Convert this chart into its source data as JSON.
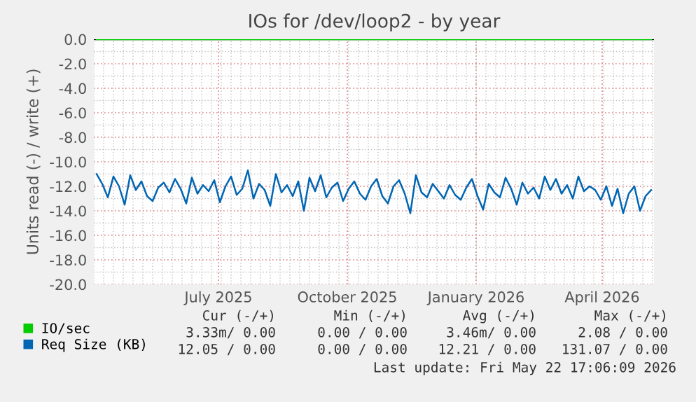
{
  "chart_data": {
    "type": "line",
    "title": "IOs for /dev/loop2 - by year",
    "ylabel": "Units read (-) / write (+)",
    "xlim": [
      "2025-04-03",
      "2026-05-08"
    ],
    "xticks": [
      {
        "value": "2025-07-01",
        "label": "July 2025"
      },
      {
        "value": "2025-10-01",
        "label": "October 2025"
      },
      {
        "value": "2026-01-01",
        "label": "January 2026"
      },
      {
        "value": "2026-04-01",
        "label": "April 2026"
      }
    ],
    "ylim": [
      -20,
      0
    ],
    "yticks": [
      {
        "value": -20,
        "label": "-20.0"
      },
      {
        "value": -18,
        "label": "-18.0"
      },
      {
        "value": -16,
        "label": "-16.0"
      },
      {
        "value": -14,
        "label": "-14.0"
      },
      {
        "value": -12,
        "label": "-12.0"
      },
      {
        "value": -10,
        "label": "-10.0"
      },
      {
        "value": -8,
        "label": "-8.0"
      },
      {
        "value": -6,
        "label": "-6.0"
      },
      {
        "value": -4,
        "label": "-4.0"
      },
      {
        "value": -2,
        "label": "-2.0"
      },
      {
        "value": 0,
        "label": "0.0"
      }
    ],
    "grid": true,
    "legend": "bottom left",
    "series": [
      {
        "name": "IO/sec",
        "color": "#00cc00",
        "x": [
          "2025-04-05",
          "2026-05-06"
        ],
        "values": [
          0,
          0
        ]
      },
      {
        "name": "Req Size (KB)",
        "color": "#0066b3",
        "x": [
          "2025-04-05",
          "2025-04-09",
          "2025-04-13",
          "2025-04-17",
          "2025-04-21",
          "2025-04-25",
          "2025-04-29",
          "2025-05-03",
          "2025-05-07",
          "2025-05-11",
          "2025-05-15",
          "2025-05-19",
          "2025-05-23",
          "2025-05-27",
          "2025-05-31",
          "2025-06-04",
          "2025-06-08",
          "2025-06-12",
          "2025-06-16",
          "2025-06-20",
          "2025-06-24",
          "2025-06-28",
          "2025-07-02",
          "2025-07-06",
          "2025-07-10",
          "2025-07-14",
          "2025-07-18",
          "2025-07-22",
          "2025-07-26",
          "2025-07-30",
          "2025-08-03",
          "2025-08-07",
          "2025-08-11",
          "2025-08-15",
          "2025-08-19",
          "2025-08-23",
          "2025-08-27",
          "2025-08-31",
          "2025-09-04",
          "2025-09-08",
          "2025-09-12",
          "2025-09-16",
          "2025-09-20",
          "2025-09-24",
          "2025-09-28",
          "2025-10-02",
          "2025-10-06",
          "2025-10-10",
          "2025-10-14",
          "2025-10-18",
          "2025-10-22",
          "2025-10-26",
          "2025-10-30",
          "2025-11-03",
          "2025-11-07",
          "2025-11-11",
          "2025-11-15",
          "2025-11-19",
          "2025-11-23",
          "2025-11-27",
          "2025-12-01",
          "2025-12-05",
          "2025-12-09",
          "2025-12-13",
          "2025-12-17",
          "2025-12-21",
          "2025-12-25",
          "2025-12-29",
          "2026-01-02",
          "2026-01-06",
          "2026-01-10",
          "2026-01-14",
          "2026-01-18",
          "2026-01-22",
          "2026-01-26",
          "2026-01-30",
          "2026-02-03",
          "2026-02-07",
          "2026-02-11",
          "2026-02-15",
          "2026-02-19",
          "2026-02-23",
          "2026-02-27",
          "2026-03-03",
          "2026-03-07",
          "2026-03-11",
          "2026-03-15",
          "2026-03-19",
          "2026-03-23",
          "2026-03-27",
          "2026-03-31",
          "2026-04-04",
          "2026-04-08",
          "2026-04-12",
          "2026-04-16",
          "2026-04-20",
          "2026-04-24",
          "2026-04-28",
          "2026-05-02",
          "2026-05-06"
        ],
        "values": [
          -11.0,
          -11.8,
          -12.9,
          -11.2,
          -12.0,
          -13.5,
          -11.1,
          -12.3,
          -11.6,
          -12.8,
          -13.2,
          -12.1,
          -11.7,
          -12.5,
          -11.4,
          -12.2,
          -13.4,
          -11.3,
          -12.6,
          -11.9,
          -12.4,
          -11.5,
          -13.3,
          -12.0,
          -11.2,
          -12.7,
          -12.2,
          -10.7,
          -13.0,
          -11.8,
          -12.3,
          -13.6,
          -11.0,
          -12.5,
          -11.9,
          -12.8,
          -11.6,
          -14.0,
          -11.3,
          -12.4,
          -11.1,
          -12.9,
          -12.1,
          -11.7,
          -13.2,
          -12.2,
          -11.6,
          -12.6,
          -13.1,
          -12.0,
          -11.4,
          -12.8,
          -13.4,
          -12.0,
          -11.5,
          -12.6,
          -14.2,
          -11.1,
          -12.5,
          -12.9,
          -11.8,
          -12.4,
          -13.0,
          -11.9,
          -12.7,
          -13.1,
          -12.1,
          -11.4,
          -12.8,
          -13.9,
          -11.8,
          -12.5,
          -12.9,
          -11.3,
          -12.2,
          -13.5,
          -11.7,
          -12.6,
          -12.1,
          -13.0,
          -11.2,
          -12.3,
          -11.4,
          -12.6,
          -11.9,
          -13.0,
          -11.2,
          -12.4,
          -12.0,
          -12.3,
          -13.1,
          -12.0,
          -13.6,
          -12.2,
          -14.2,
          -12.6,
          -12.0,
          -14.0,
          -12.8,
          -12.3
        ]
      }
    ],
    "annotations": [
      "Cur (-/+)",
      "Min (-/+)",
      "Avg (-/+)",
      "Max (-/+)",
      "3.33m/ 0.00",
      "0.00 / 0.00",
      "3.46m/ 0.00",
      "2.08 / 0.00",
      "12.05 / 0.00",
      "0.00 / 0.00",
      "12.21 / 0.00",
      "131.07 / 0.00",
      "Last update: Fri May 22 17:06:09 2026"
    ]
  }
}
